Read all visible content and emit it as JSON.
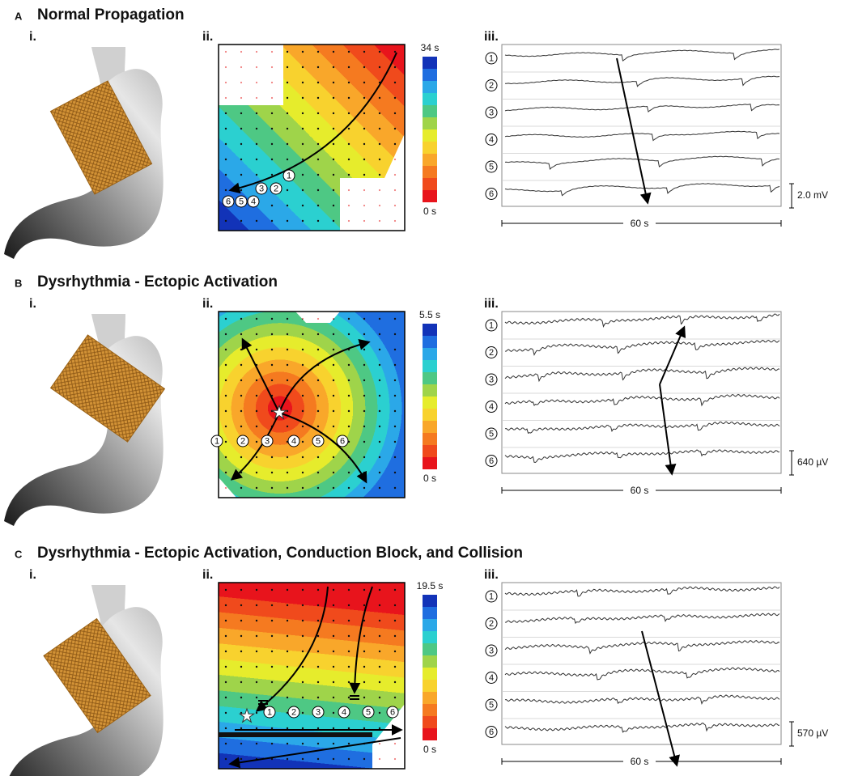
{
  "panels": [
    {
      "letter": "A",
      "title": "Normal Propagation",
      "labels": [
        "i.",
        "ii.",
        "iii."
      ],
      "colorbar": {
        "max": "34 s",
        "min": "0 s"
      },
      "map_electrodes": [
        "1",
        "2",
        "3",
        "4",
        "5",
        "6"
      ],
      "trace_electrodes": [
        "1",
        "2",
        "3",
        "4",
        "5",
        "6"
      ],
      "amplitude": "2.0 mV",
      "duration": "60 s"
    },
    {
      "letter": "B",
      "title": "Dysrhythmia - Ectopic Activation",
      "labels": [
        "i.",
        "ii.",
        "iii."
      ],
      "colorbar": {
        "max": "5.5 s",
        "min": "0 s"
      },
      "map_electrodes": [
        "1",
        "2",
        "3",
        "4",
        "5",
        "6"
      ],
      "trace_electrodes": [
        "1",
        "2",
        "3",
        "4",
        "5",
        "6"
      ],
      "amplitude": "640 µV",
      "duration": "60 s"
    },
    {
      "letter": "C",
      "title": "Dysrhythmia - Ectopic Activation, Conduction Block, and Collision",
      "labels": [
        "i.",
        "ii.",
        "iii."
      ],
      "colorbar": {
        "max": "19.5 s",
        "min": "0 s"
      },
      "map_electrodes": [
        "1",
        "2",
        "3",
        "4",
        "5",
        "6"
      ],
      "trace_electrodes": [
        "1",
        "2",
        "3",
        "4",
        "5",
        "6"
      ],
      "amplitude": "570 µV",
      "duration": "60 s"
    }
  ]
}
